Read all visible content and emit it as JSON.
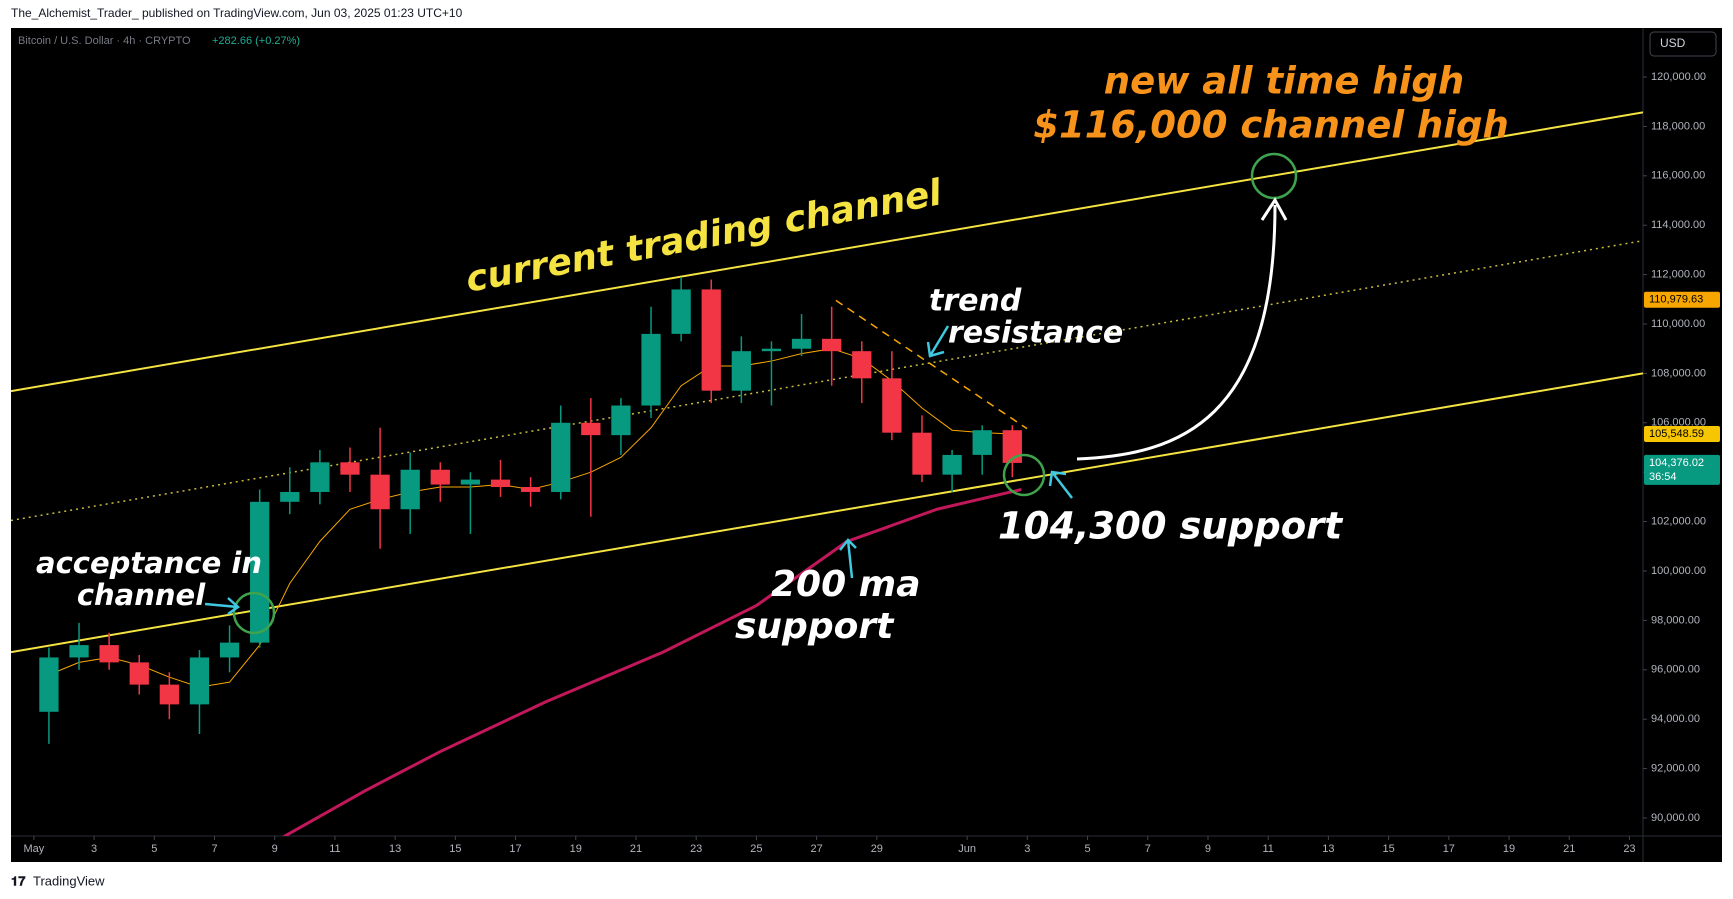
{
  "header": "The_Alchemist_Trader_ published on TradingView.com, Jun 03, 2025 01:23 UTC+10",
  "footer": "TradingView",
  "chart_data": {
    "type": "candlestick",
    "title": "Bitcoin / U.S. Dollar · 4h · CRYPTO",
    "subtitle": "+282.66 (+0.27%)",
    "currency": "USD",
    "x": [
      0.5,
      1.5,
      2.5,
      3.5,
      4.5,
      5.5,
      6.5,
      7.5,
      8.5,
      9.5,
      10.5,
      11.5,
      12.5,
      13.5,
      14.5,
      15.5,
      16.5,
      17.5,
      18.5,
      19.5,
      20.5,
      21.5,
      22.5,
      23.5,
      24.5,
      25.5,
      26.5,
      27.5,
      28.5,
      29.5,
      30.5,
      31.5,
      32.5
    ],
    "open": [
      94300,
      96500,
      97000,
      96300,
      95400,
      94600,
      96500,
      97100,
      102800,
      103200,
      104400,
      103900,
      102500,
      104100,
      103500,
      103700,
      103400,
      103200,
      106000,
      105500,
      106700,
      109600,
      111400,
      107300,
      108900,
      109000,
      109400,
      108900,
      107800,
      105600,
      103900,
      104700,
      105700
    ],
    "high": [
      96900,
      97900,
      97500,
      96600,
      95900,
      96800,
      97800,
      103300,
      104200,
      104900,
      105000,
      105800,
      104800,
      104400,
      104000,
      104500,
      103800,
      106700,
      107000,
      107000,
      110700,
      111900,
      111800,
      109500,
      109300,
      110400,
      110700,
      109300,
      108900,
      106300,
      104900,
      105900,
      105900
    ],
    "low": [
      93000,
      96000,
      96000,
      95000,
      94000,
      93400,
      95900,
      96900,
      102300,
      102700,
      103200,
      100900,
      101500,
      102800,
      101500,
      103000,
      102600,
      102900,
      102200,
      104700,
      106200,
      109300,
      106800,
      106800,
      106700,
      108700,
      107500,
      106800,
      105300,
      103600,
      103200,
      103900,
      103800
    ],
    "close": [
      96500,
      97000,
      96300,
      95400,
      94600,
      96500,
      97100,
      102800,
      103200,
      104400,
      103900,
      102500,
      104100,
      103500,
      103700,
      103400,
      103200,
      106000,
      105500,
      106700,
      109600,
      111400,
      107300,
      108900,
      109000,
      109400,
      108900,
      107800,
      105600,
      103900,
      104700,
      105700,
      104376.02
    ],
    "up_color": "#089981",
    "down_color": "#f23645",
    "moving_averages": [
      {
        "color": "#f7a600",
        "width": 1,
        "x": [
          0.5,
          1.5,
          2.5,
          3.5,
          4.5,
          5.5,
          6.5,
          7.5,
          8.5,
          9.5,
          10.5,
          11.5,
          12.5,
          13.5,
          14.5,
          15.5,
          16.5,
          17.5,
          18.5,
          19.5,
          20.5,
          21.5,
          22.5,
          23.5,
          24.5,
          25.5,
          26.5,
          27.5,
          28.5,
          29.5,
          30.5,
          31.5,
          32.5
        ],
        "values": [
          95800,
          96300,
          96500,
          96200,
          95700,
          95300,
          95500,
          97000,
          99500,
          101200,
          102500,
          102900,
          103200,
          103400,
          103400,
          103500,
          103300,
          103600,
          104000,
          104600,
          105800,
          107500,
          108300,
          108300,
          108500,
          108800,
          109000,
          108600,
          107700,
          106600,
          105700,
          105600,
          105548.59
        ]
      },
      {
        "color": "#c2185b",
        "width": 3,
        "x": [
          8.3,
          11,
          13.5,
          17,
          20.9,
          24,
          27,
          30,
          32.8
        ],
        "values": [
          89243,
          91100,
          92690,
          94700,
          96717,
          98600,
          101190,
          102500,
          103300
        ]
      }
    ],
    "trendlines": [
      {
        "style": "solid",
        "color": "#f5e342",
        "x": [
          -0.76,
          53.45
        ],
        "values": [
          107284,
          118567
        ]
      },
      {
        "style": "solid",
        "color": "#f5e342",
        "x": [
          -0.76,
          53.45
        ],
        "values": [
          96717,
          108000
        ]
      },
      {
        "style": "dotted",
        "color": "#c9bd3a",
        "x": [
          -0.76,
          53.45
        ],
        "values": [
          102046,
          113373
        ]
      },
      {
        "style": "dashed",
        "color": "#f7a600",
        "x": [
          26.64,
          32.99
        ],
        "values": [
          110956,
          105763
        ]
      }
    ],
    "price_markers": [
      {
        "value": 110979.63,
        "label": "110,979.63",
        "color": "#f7a600"
      },
      {
        "value": 105548.59,
        "label": "105,548.59",
        "color": "#f7c600"
      },
      {
        "value": 104376.02,
        "label": "104,376.02",
        "countdown": "36:54",
        "color": "#089981"
      }
    ],
    "annotations": [
      "current trading channel",
      "new all time high",
      "$116,000 channel high",
      "trend",
      "resistance",
      "104,300 support",
      "200 ma",
      "support",
      "acceptance in",
      "channel"
    ],
    "xlim": [
      -0.76,
      53.45
    ],
    "ylim": [
      89271,
      121984
    ],
    "xticks": [
      {
        "value": 0,
        "label": "May"
      },
      {
        "value": 2,
        "label": "3"
      },
      {
        "value": 4,
        "label": "5"
      },
      {
        "value": 6,
        "label": "7"
      },
      {
        "value": 8,
        "label": "9"
      },
      {
        "value": 10,
        "label": "11"
      },
      {
        "value": 12,
        "label": "13"
      },
      {
        "value": 14,
        "label": "15"
      },
      {
        "value": 16,
        "label": "17"
      },
      {
        "value": 18,
        "label": "19"
      },
      {
        "value": 20,
        "label": "21"
      },
      {
        "value": 22,
        "label": "23"
      },
      {
        "value": 24,
        "label": "25"
      },
      {
        "value": 26,
        "label": "27"
      },
      {
        "value": 28,
        "label": "29"
      },
      {
        "value": 31,
        "label": "Jun"
      },
      {
        "value": 33,
        "label": "3"
      },
      {
        "value": 35,
        "label": "5"
      },
      {
        "value": 37,
        "label": "7"
      },
      {
        "value": 39,
        "label": "9"
      },
      {
        "value": 41,
        "label": "11"
      },
      {
        "value": 43,
        "label": "13"
      },
      {
        "value": 45,
        "label": "15"
      },
      {
        "value": 47,
        "label": "17"
      },
      {
        "value": 49,
        "label": "19"
      },
      {
        "value": 51,
        "label": "21"
      },
      {
        "value": 53,
        "label": "23"
      }
    ],
    "yticks": [
      {
        "value": 90000,
        "label": "90,000.00"
      },
      {
        "value": 92000,
        "label": "92,000.00"
      },
      {
        "value": 94000,
        "label": "94,000.00"
      },
      {
        "value": 96000,
        "label": "96,000.00"
      },
      {
        "value": 98000,
        "label": "98,000.00"
      },
      {
        "value": 100000,
        "label": "100,000.00"
      },
      {
        "value": 102000,
        "label": "102,000.00"
      },
      {
        "value": 104000,
        "label": "104,000.00"
      },
      {
        "value": 106000,
        "label": "106,000.00"
      },
      {
        "value": 108000,
        "label": "108,000.00"
      },
      {
        "value": 110000,
        "label": "110,000.00"
      },
      {
        "value": 112000,
        "label": "112,000.00"
      },
      {
        "value": 114000,
        "label": "114,000.00"
      },
      {
        "value": 116000,
        "label": "116,000.00"
      },
      {
        "value": 118000,
        "label": "118,000.00"
      },
      {
        "value": 120000,
        "label": "120,000.00"
      }
    ]
  }
}
